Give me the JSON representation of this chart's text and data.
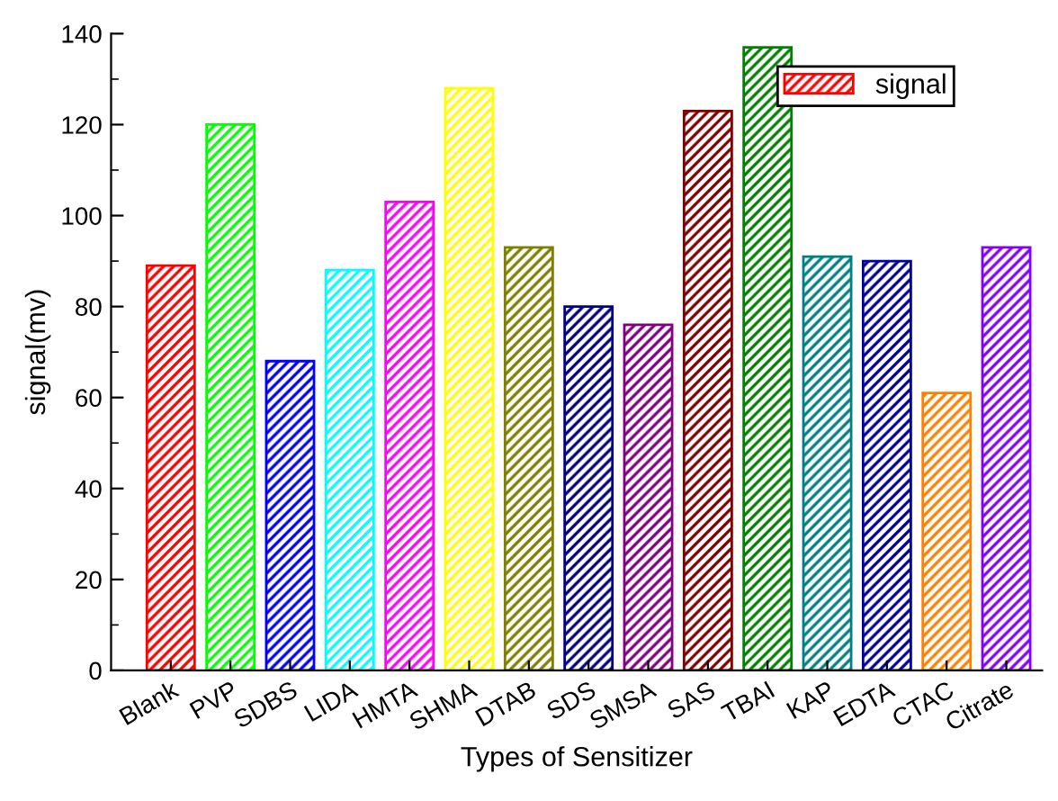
{
  "chart_data": {
    "type": "bar",
    "xlabel": "Types of Sensitizer",
    "ylabel": "signal(mv)",
    "categories": [
      "Blank",
      "PVP",
      "SDBS",
      "LIDA",
      "HMTA",
      "SHMA",
      "DTAB",
      "SDS",
      "SMSA",
      "SAS",
      "TBAI",
      "KAP",
      "EDTA",
      "CTAC",
      "Citrate"
    ],
    "series": [
      {
        "name": "signal",
        "values": [
          89,
          120,
          68,
          88,
          103,
          128,
          93,
          80,
          76,
          123,
          137,
          91,
          90,
          61,
          93
        ],
        "colors": [
          "#ff0000",
          "#00ff00",
          "#0000ff",
          "#00ffff",
          "#ff00ff",
          "#ffff00",
          "#808000",
          "#000080",
          "#800080",
          "#800000",
          "#008000",
          "#008080",
          "#0000a0",
          "#ff8000",
          "#8000ff"
        ]
      }
    ],
    "ylim": [
      0,
      140
    ],
    "yticks": [
      0,
      20,
      40,
      60,
      80,
      100,
      120,
      140
    ],
    "legend": "top right",
    "grid": false
  }
}
